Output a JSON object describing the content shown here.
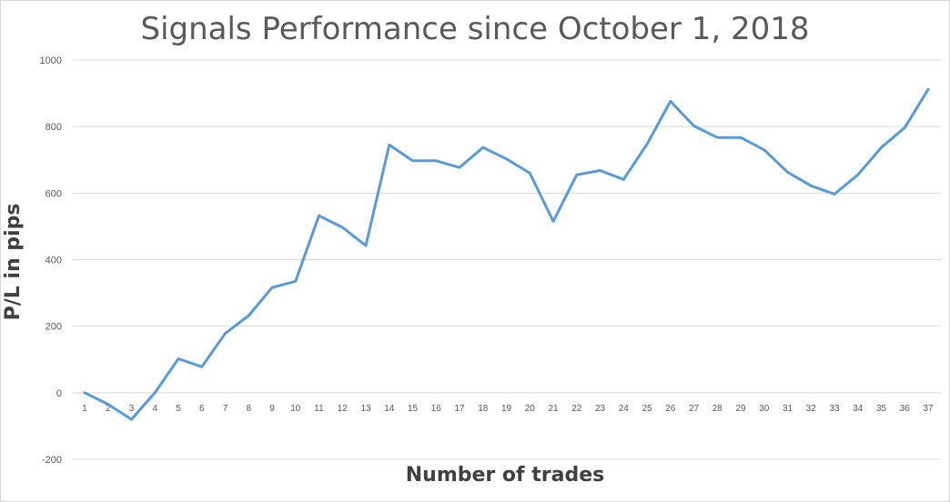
{
  "chart_data": {
    "type": "line",
    "title": "Signals Performance since October 1, 2018",
    "xlabel": "Number of trades",
    "ylabel": "P/L in pips",
    "ylim": [
      -200,
      1000
    ],
    "yticks": [
      -200,
      0,
      200,
      400,
      600,
      800,
      1000
    ],
    "grid": true,
    "legend": "none",
    "x": [
      1,
      2,
      3,
      4,
      5,
      6,
      7,
      8,
      9,
      10,
      11,
      12,
      13,
      14,
      15,
      16,
      17,
      18,
      19,
      20,
      21,
      22,
      23,
      24,
      25,
      26,
      27,
      28,
      29,
      30,
      31,
      32,
      33,
      34,
      35,
      36,
      37
    ],
    "series": [
      {
        "color": "#5B9BD5",
        "values": [
          0,
          -35,
          -80,
          0,
          102,
          78,
          178,
          232,
          316,
          335,
          532,
          497,
          442,
          745,
          697,
          697,
          677,
          737,
          703,
          660,
          515,
          655,
          668,
          641,
          747,
          876,
          802,
          767,
          767,
          730,
          663,
          622,
          597,
          655,
          737,
          797,
          912
        ]
      }
    ]
  },
  "colors": {
    "gridline": "#d9d9d9",
    "line": "#5B9BD5",
    "axis": "#d9d9d9"
  }
}
